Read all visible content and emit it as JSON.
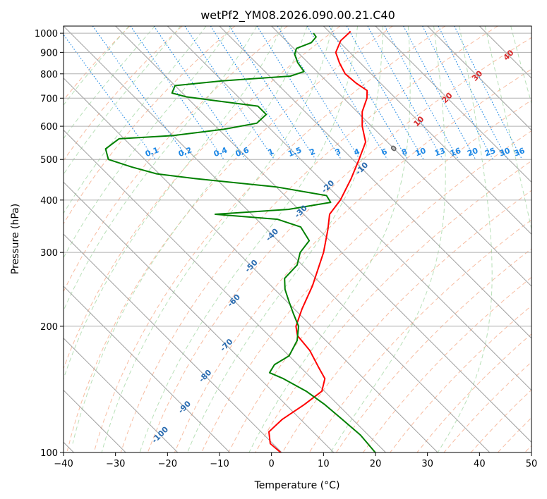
{
  "chart_data": {
    "type": "line",
    "title": "wetPf2_YM08.2026.090.00.21.C40",
    "xlabel": "Temperature (°C)",
    "ylabel": "Pressure (hPa)",
    "xlim": [
      -40,
      50
    ],
    "ylim": [
      1040,
      100
    ],
    "y_scale": "log",
    "grid": true,
    "x_ticks": [
      "−40",
      "−30",
      "−20",
      "−10",
      "0",
      "10",
      "20",
      "30",
      "40",
      "50"
    ],
    "x_tick_values": [
      -40,
      -30,
      -20,
      -10,
      0,
      10,
      20,
      30,
      40,
      50
    ],
    "y_ticks": [
      "100",
      "200",
      "300",
      "400",
      "500",
      "600",
      "700",
      "800",
      "900",
      "1000"
    ],
    "y_tick_values": [
      100,
      200,
      300,
      400,
      500,
      600,
      700,
      800,
      900,
      1000
    ],
    "skew_factor": 35,
    "colors": {
      "temperature": "#ff0000",
      "dewpoint": "#008000",
      "isotherm": "#a0a0a0",
      "dry_adiabat": "#f4a582",
      "moist_adiabat": "#a6d8a6",
      "mixing_ratio": "#1e88e5",
      "iso_label": "#2b6cb0",
      "moist_label": "#d62728"
    },
    "series": [
      {
        "name": "Temperature",
        "color": "#ff0000",
        "points": [
          {
            "p": 1010,
            "t": 14.2
          },
          {
            "p": 960,
            "t": 10.5
          },
          {
            "p": 900,
            "t": 7.3
          },
          {
            "p": 850,
            "t": 6.0
          },
          {
            "p": 800,
            "t": 5.0
          },
          {
            "p": 760,
            "t": 5.3
          },
          {
            "p": 730,
            "t": 6.0
          },
          {
            "p": 700,
            "t": 4.5
          },
          {
            "p": 650,
            "t": 1.0
          },
          {
            "p": 600,
            "t": -1.8
          },
          {
            "p": 550,
            "t": -4.2
          },
          {
            "p": 500,
            "t": -8.8
          },
          {
            "p": 450,
            "t": -14.0
          },
          {
            "p": 400,
            "t": -20.2
          },
          {
            "p": 370,
            "t": -25.0
          },
          {
            "p": 340,
            "t": -28.3
          },
          {
            "p": 300,
            "t": -33.5
          },
          {
            "p": 250,
            "t": -42.0
          },
          {
            "p": 220,
            "t": -48.5
          },
          {
            "p": 200,
            "t": -53.0
          },
          {
            "p": 190,
            "t": -54.5
          },
          {
            "p": 175,
            "t": -55.0
          },
          {
            "p": 160,
            "t": -56.5
          },
          {
            "p": 150,
            "t": -57.5
          },
          {
            "p": 140,
            "t": -60.5
          },
          {
            "p": 130,
            "t": -66.5
          },
          {
            "p": 120,
            "t": -73.5
          },
          {
            "p": 112,
            "t": -78.5
          },
          {
            "p": 105,
            "t": -80.5
          },
          {
            "p": 100,
            "t": -80.2
          }
        ]
      },
      {
        "name": "Dewpoint",
        "color": "#008000",
        "points": [
          {
            "p": 1000,
            "t": 6.7
          },
          {
            "p": 980,
            "t": 6.5
          },
          {
            "p": 950,
            "t": 4.5
          },
          {
            "p": 920,
            "t": 0.5
          },
          {
            "p": 890,
            "t": -1.0
          },
          {
            "p": 850,
            "t": -2.0
          },
          {
            "p": 810,
            "t": -2.5
          },
          {
            "p": 790,
            "t": -6.0
          },
          {
            "p": 770,
            "t": -20.0
          },
          {
            "p": 750,
            "t": -30.0
          },
          {
            "p": 720,
            "t": -32.0
          },
          {
            "p": 705,
            "t": -30.0
          },
          {
            "p": 690,
            "t": -25.0
          },
          {
            "p": 670,
            "t": -18.0
          },
          {
            "p": 640,
            "t": -18.0
          },
          {
            "p": 610,
            "t": -21.5
          },
          {
            "p": 590,
            "t": -29.0
          },
          {
            "p": 570,
            "t": -40.0
          },
          {
            "p": 560,
            "t": -51.0
          },
          {
            "p": 530,
            "t": -55.5
          },
          {
            "p": 500,
            "t": -57.0
          },
          {
            "p": 480,
            "t": -54.0
          },
          {
            "p": 462,
            "t": -50.5
          },
          {
            "p": 450,
            "t": -44.0
          },
          {
            "p": 430,
            "t": -30.0
          },
          {
            "p": 410,
            "t": -22.0
          },
          {
            "p": 395,
            "t": -22.5
          },
          {
            "p": 380,
            "t": -32.0
          },
          {
            "p": 370,
            "t": -47.0
          },
          {
            "p": 360,
            "t": -36.0
          },
          {
            "p": 345,
            "t": -33.0
          },
          {
            "p": 320,
            "t": -34.0
          },
          {
            "p": 300,
            "t": -38.0
          },
          {
            "p": 280,
            "t": -41.0
          },
          {
            "p": 260,
            "t": -46.0
          },
          {
            "p": 245,
            "t": -48.0
          },
          {
            "p": 230,
            "t": -49.5
          },
          {
            "p": 215,
            "t": -51.0
          },
          {
            "p": 200,
            "t": -52.5
          },
          {
            "p": 185,
            "t": -55.5
          },
          {
            "p": 170,
            "t": -60.0
          },
          {
            "p": 162,
            "t": -64.5
          },
          {
            "p": 155,
            "t": -67.0
          },
          {
            "p": 150,
            "t": -65.5
          },
          {
            "p": 140,
            "t": -63.5
          },
          {
            "p": 130,
            "t": -62.5
          },
          {
            "p": 120,
            "t": -62.0
          },
          {
            "p": 110,
            "t": -61.5
          },
          {
            "p": 100,
            "t": -62.0
          }
        ]
      }
    ],
    "mixing_ratio_labels": [
      "0.1",
      "0.2",
      "0.4",
      "0.6",
      "1",
      "1.5",
      "2",
      "3",
      "4",
      "6",
      "8",
      "10",
      "13",
      "16",
      "20",
      "25",
      "30",
      "36"
    ],
    "mixing_ratio_values": [
      0.1,
      0.2,
      0.4,
      0.6,
      1,
      1.5,
      2,
      3,
      4,
      6,
      8,
      10,
      13,
      16,
      20,
      25,
      30,
      36
    ],
    "isotherm_labels": [
      "-100",
      "-90",
      "-80",
      "-70",
      "-60",
      "-50",
      "-40",
      "-30",
      "-20",
      "-10",
      "0"
    ],
    "isotherm_values": [
      -100,
      -90,
      -80,
      -70,
      -60,
      -50,
      -40,
      -30,
      -20,
      -10,
      0
    ],
    "moist_labels": [
      "10",
      "20",
      "30",
      "40"
    ],
    "moist_values": [
      10,
      20,
      30,
      40
    ]
  }
}
